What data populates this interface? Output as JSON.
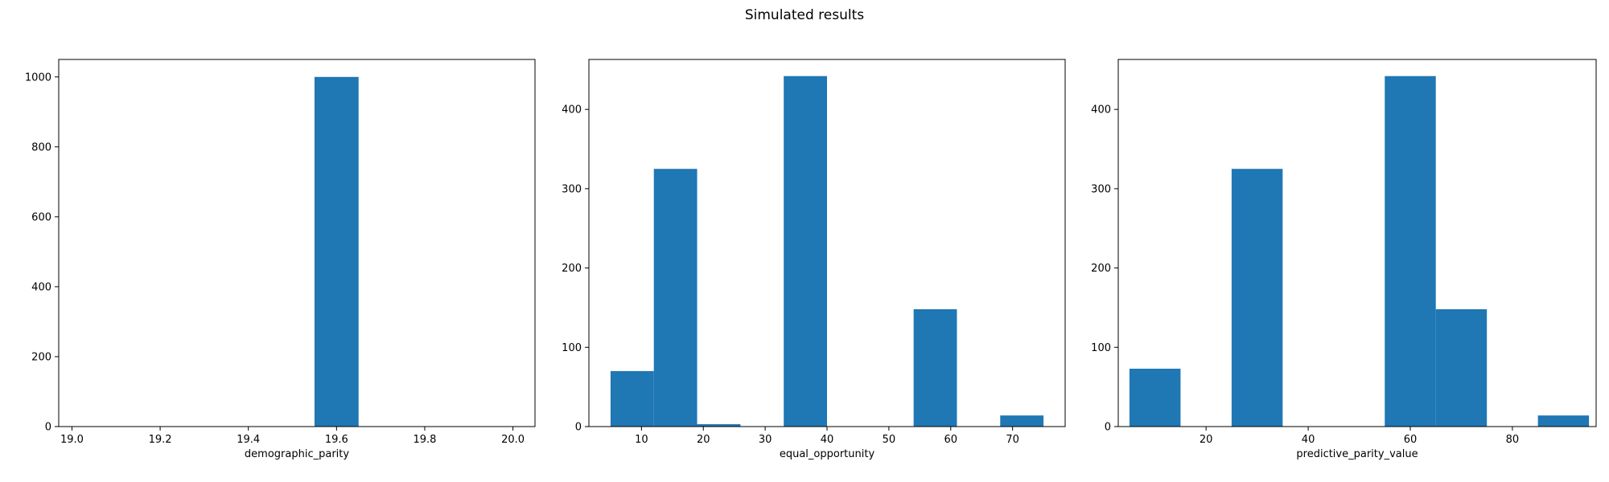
{
  "title": "Simulated results",
  "bar_color": "#1f77b4",
  "chart_data": [
    {
      "type": "bar",
      "xlabel": "demographic_parity",
      "xlim": [
        18.97,
        20.05
      ],
      "ylim": [
        0,
        1050
      ],
      "xticks": [
        19.0,
        19.2,
        19.4,
        19.6,
        19.8,
        20.0
      ],
      "xtick_labels": [
        "19.0",
        "19.2",
        "19.4",
        "19.6",
        "19.8",
        "20.0"
      ],
      "yticks": [
        0,
        200,
        400,
        600,
        800,
        1000
      ],
      "ytick_labels": [
        "0",
        "200",
        "400",
        "600",
        "800",
        "1000"
      ],
      "bins": [
        {
          "start": 19.55,
          "end": 19.65,
          "count": 1000
        }
      ]
    },
    {
      "type": "bar",
      "xlabel": "equal_opportunity",
      "xlim": [
        1.5,
        78.5
      ],
      "ylim": [
        0,
        463
      ],
      "xticks": [
        10,
        20,
        30,
        40,
        50,
        60,
        70
      ],
      "xtick_labels": [
        "10",
        "20",
        "30",
        "40",
        "50",
        "60",
        "70"
      ],
      "yticks": [
        0,
        100,
        200,
        300,
        400
      ],
      "ytick_labels": [
        "0",
        "100",
        "200",
        "300",
        "400"
      ],
      "bins": [
        {
          "start": 5.0,
          "end": 12.0,
          "count": 70
        },
        {
          "start": 12.0,
          "end": 19.0,
          "count": 325
        },
        {
          "start": 19.0,
          "end": 26.0,
          "count": 3
        },
        {
          "start": 26.0,
          "end": 33.0,
          "count": 0
        },
        {
          "start": 33.0,
          "end": 40.0,
          "count": 442
        },
        {
          "start": 40.0,
          "end": 47.0,
          "count": 0
        },
        {
          "start": 47.0,
          "end": 54.0,
          "count": 0
        },
        {
          "start": 54.0,
          "end": 61.0,
          "count": 148
        },
        {
          "start": 61.0,
          "end": 68.0,
          "count": 0
        },
        {
          "start": 68.0,
          "end": 75.0,
          "count": 14
        }
      ]
    },
    {
      "type": "bar",
      "xlabel": "predictive_parity_value",
      "xlim": [
        2.8,
        96.4
      ],
      "ylim": [
        0,
        463
      ],
      "xticks": [
        20,
        40,
        60,
        80
      ],
      "xtick_labels": [
        "20",
        "40",
        "60",
        "80"
      ],
      "yticks": [
        0,
        100,
        200,
        300,
        400
      ],
      "ytick_labels": [
        "0",
        "100",
        "200",
        "300",
        "400"
      ],
      "bins": [
        {
          "start": 5.0,
          "end": 15.0,
          "count": 73
        },
        {
          "start": 15.0,
          "end": 25.0,
          "count": 0
        },
        {
          "start": 25.0,
          "end": 35.0,
          "count": 325
        },
        {
          "start": 35.0,
          "end": 45.0,
          "count": 0
        },
        {
          "start": 45.0,
          "end": 55.0,
          "count": 0
        },
        {
          "start": 55.0,
          "end": 65.0,
          "count": 442
        },
        {
          "start": 65.0,
          "end": 75.0,
          "count": 148
        },
        {
          "start": 75.0,
          "end": 85.0,
          "count": 0
        },
        {
          "start": 85.0,
          "end": 95.0,
          "count": 14
        }
      ]
    }
  ]
}
